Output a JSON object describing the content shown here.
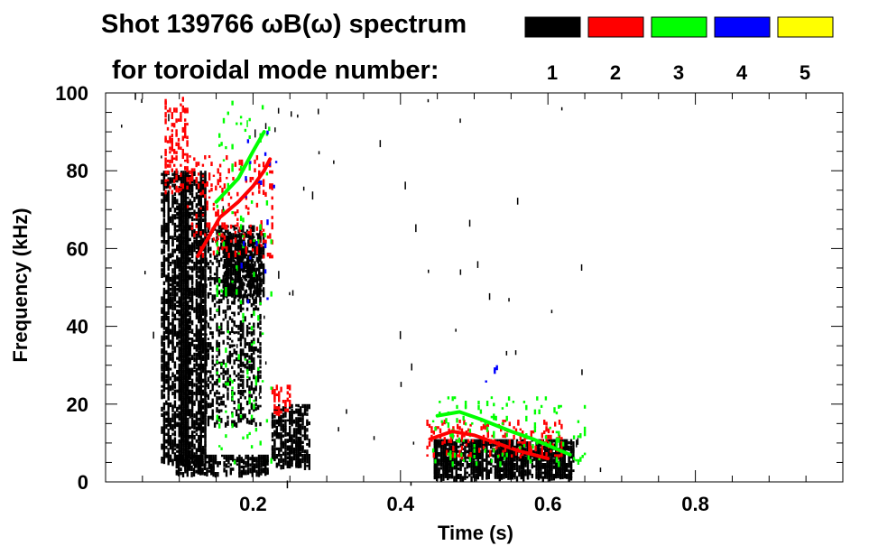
{
  "chart_data": {
    "type": "heatmap",
    "title_line1": "Shot 139766 ωB(ω) spectrum",
    "title_line2": "for toroidal mode number:",
    "xlabel": "Time (s)",
    "ylabel": "Frequency (kHz)",
    "xlim": [
      0.0,
      1.0
    ],
    "ylim": [
      0,
      100
    ],
    "x_ticks": [
      {
        "value": 0.2,
        "label": "0.2"
      },
      {
        "value": 0.4,
        "label": "0.4"
      },
      {
        "value": 0.6,
        "label": "0.6"
      },
      {
        "value": 0.8,
        "label": "0.8"
      }
    ],
    "y_ticks": [
      {
        "value": 0,
        "label": "0"
      },
      {
        "value": 20,
        "label": "20"
      },
      {
        "value": 40,
        "label": "40"
      },
      {
        "value": 60,
        "label": "60"
      },
      {
        "value": 80,
        "label": "80"
      },
      {
        "value": 100,
        "label": "100"
      }
    ],
    "legend": [
      {
        "n": "1",
        "color": "#000000"
      },
      {
        "n": "2",
        "color": "#ff0000"
      },
      {
        "n": "3",
        "color": "#00ff00"
      },
      {
        "n": "4",
        "color": "#0000ff"
      },
      {
        "n": "5",
        "color": "#ffff00"
      }
    ],
    "regions": [
      {
        "mode": 1,
        "t0": 0.075,
        "t1": 0.135,
        "f0": 5,
        "f1": 80,
        "density": 0.85
      },
      {
        "mode": 1,
        "t0": 0.135,
        "t1": 0.21,
        "f0": 15,
        "f1": 66,
        "density": 0.35
      },
      {
        "mode": 1,
        "t0": 0.16,
        "t1": 0.215,
        "f0": 48,
        "f1": 64,
        "density": 0.8
      },
      {
        "mode": 1,
        "t0": 0.095,
        "t1": 0.22,
        "f0": 2,
        "f1": 7,
        "density": 0.7
      },
      {
        "mode": 1,
        "t0": 0.225,
        "t1": 0.275,
        "f0": 4,
        "f1": 20,
        "density": 0.6
      },
      {
        "mode": 1,
        "t0": 0.445,
        "t1": 0.635,
        "f0": 1,
        "f1": 11,
        "density": 0.9
      },
      {
        "mode": 2,
        "t0": 0.08,
        "t1": 0.11,
        "f0": 75,
        "f1": 99,
        "density": 0.25
      },
      {
        "mode": 2,
        "t0": 0.11,
        "t1": 0.225,
        "f0": 58,
        "f1": 84,
        "density": 0.12
      },
      {
        "mode": 2,
        "t0": 0.225,
        "t1": 0.25,
        "f0": 18,
        "f1": 25,
        "density": 0.35
      },
      {
        "mode": 2,
        "t0": 0.435,
        "t1": 0.62,
        "f0": 7,
        "f1": 16,
        "density": 0.18
      },
      {
        "mode": 3,
        "t0": 0.15,
        "t1": 0.225,
        "f0": 4,
        "f1": 98,
        "density": 0.04
      },
      {
        "mode": 3,
        "t0": 0.44,
        "t1": 0.65,
        "f0": 5,
        "f1": 22,
        "density": 0.06
      },
      {
        "mode": 4,
        "t0": 0.18,
        "t1": 0.23,
        "f0": 40,
        "f1": 92,
        "density": 0.015
      },
      {
        "mode": 4,
        "t0": 0.5,
        "t1": 0.53,
        "f0": 25,
        "f1": 30,
        "density": 0.03
      }
    ],
    "ridges": [
      {
        "mode": 2,
        "points": [
          [
            0.125,
            58
          ],
          [
            0.155,
            68
          ],
          [
            0.18,
            72
          ],
          [
            0.2,
            76
          ],
          [
            0.215,
            80
          ],
          [
            0.223,
            83
          ]
        ]
      },
      {
        "mode": 3,
        "points": [
          [
            0.15,
            72
          ],
          [
            0.18,
            78
          ],
          [
            0.2,
            85
          ],
          [
            0.215,
            90
          ]
        ]
      },
      {
        "mode": 2,
        "points": [
          [
            0.44,
            11
          ],
          [
            0.47,
            13
          ],
          [
            0.5,
            12
          ],
          [
            0.53,
            10
          ],
          [
            0.56,
            8
          ],
          [
            0.6,
            6
          ]
        ]
      },
      {
        "mode": 3,
        "points": [
          [
            0.45,
            17
          ],
          [
            0.48,
            18
          ],
          [
            0.51,
            16
          ],
          [
            0.55,
            13
          ],
          [
            0.58,
            11
          ],
          [
            0.63,
            7
          ]
        ]
      }
    ]
  }
}
